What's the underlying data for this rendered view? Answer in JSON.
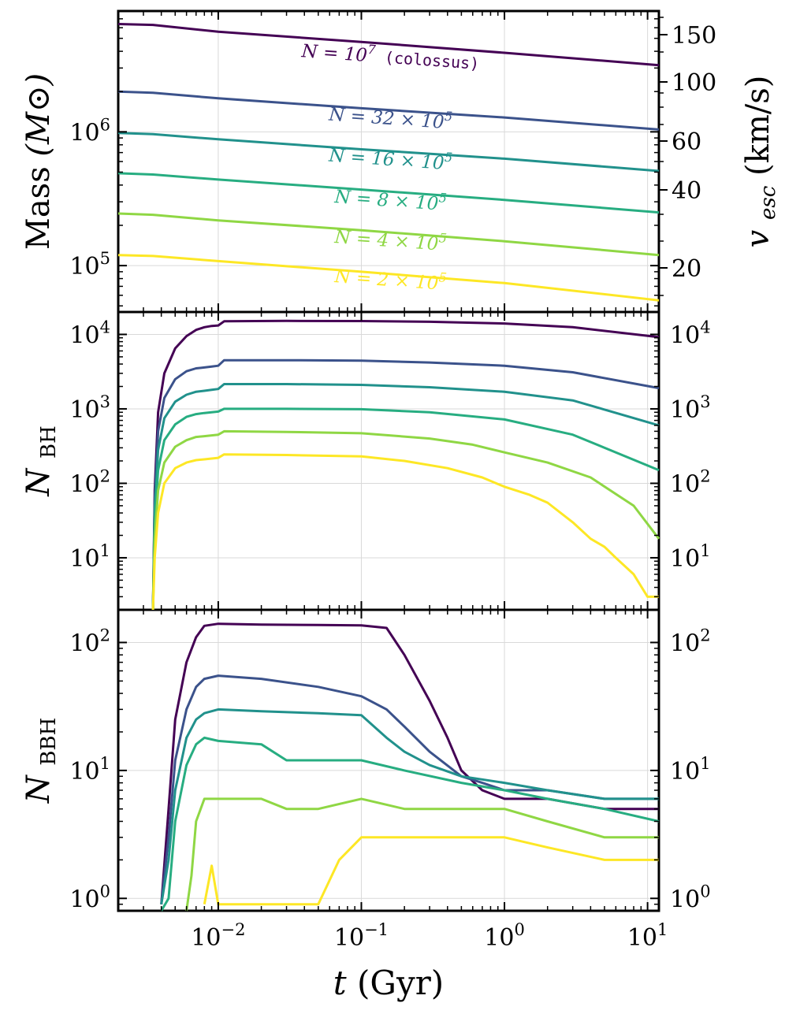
{
  "chart_data": {
    "type": "line",
    "shared_x": {
      "label_var": "t",
      "label_unit": "(Gyr)",
      "scale": "log",
      "xlim": [
        0.002,
        12
      ],
      "ticks": [
        {
          "value": 0.01,
          "base": "10",
          "exp": "−2"
        },
        {
          "value": 0.1,
          "base": "10",
          "exp": "−1"
        },
        {
          "value": 1,
          "base": "10",
          "exp": "0"
        },
        {
          "value": 10,
          "base": "10",
          "exp": "1"
        }
      ]
    },
    "colors": {
      "N1e7": "#440154",
      "N32e5": "#3b528b",
      "N16e5": "#21918c",
      "N8e5": "#27ad81",
      "N4e5": "#8fd744",
      "N2e5": "#fde725"
    },
    "panels": [
      {
        "id": "mass",
        "title": "",
        "ylabel_main": "Mass",
        "ylabel_unit": "(M⊙)",
        "yscale": "log",
        "ylim": [
          45000,
          8000000
        ],
        "yticks": [
          {
            "value": 100000,
            "base": "10",
            "exp": "5"
          },
          {
            "value": 1000000,
            "base": "10",
            "exp": "6"
          }
        ],
        "right_axis": {
          "label": "v_esc (km/s)",
          "label_main": "v",
          "label_sub": "esc",
          "label_unit": "(km/s)",
          "ticks": [
            "150",
            "100",
            "60",
            "40",
            "20"
          ]
        },
        "series": [
          {
            "name": "N = 10^7 (colossus)",
            "color_key": "N1e7",
            "label_text": "N = 10",
            "label_exp": "7",
            "label_suffix": "(colossus)",
            "x": [
              0.002,
              0.0035,
              0.01,
              0.1,
              1,
              12
            ],
            "y": [
              6400000,
              6300000,
              5600000,
              4700000,
              3900000,
              3150000
            ]
          },
          {
            "name": "N = 32 × 10^5",
            "color_key": "N32e5",
            "label_text": "N = 32 × 10",
            "label_exp": "5",
            "x": [
              0.002,
              0.0035,
              0.01,
              0.1,
              1,
              12
            ],
            "y": [
              2000000,
              1960000,
              1780000,
              1500000,
              1280000,
              1040000
            ]
          },
          {
            "name": "N = 16 × 10^5",
            "color_key": "N16e5",
            "label_text": "N = 16 × 10",
            "label_exp": "5",
            "x": [
              0.002,
              0.0035,
              0.01,
              0.1,
              1,
              12
            ],
            "y": [
              980000,
              960000,
              880000,
              740000,
              630000,
              510000
            ]
          },
          {
            "name": "N = 8 × 10^5",
            "color_key": "N8e5",
            "label_text": "N = 8 × 10",
            "label_exp": "5",
            "x": [
              0.002,
              0.0035,
              0.01,
              0.1,
              1,
              12
            ],
            "y": [
              490000,
              480000,
              440000,
              370000,
              310000,
              250000
            ]
          },
          {
            "name": "N = 4 × 10^5",
            "color_key": "N4e5",
            "label_text": "N = 4 × 10",
            "label_exp": "5",
            "x": [
              0.002,
              0.0035,
              0.01,
              0.1,
              1,
              12
            ],
            "y": [
              245000,
              240000,
              218000,
              184000,
              152000,
              120000
            ]
          },
          {
            "name": "N = 2 × 10^5",
            "color_key": "N2e5",
            "label_text": "N = 2 × 10",
            "label_exp": "5",
            "x": [
              0.002,
              0.0035,
              0.01,
              0.1,
              1,
              12
            ],
            "y": [
              120000,
              118000,
              108000,
              90000,
              74000,
              55000
            ]
          }
        ]
      },
      {
        "id": "nbh",
        "ylabel_main": "N",
        "ylabel_sub": "BH",
        "yscale": "log",
        "ylim": [
          2,
          20000
        ],
        "yticks": [
          {
            "value": 10,
            "base": "10",
            "exp": "1"
          },
          {
            "value": 100,
            "base": "10",
            "exp": "2"
          },
          {
            "value": 1000,
            "base": "10",
            "exp": "3"
          },
          {
            "value": 10000,
            "base": "10",
            "exp": "4"
          }
        ],
        "series": [
          {
            "color_key": "N1e7",
            "x": [
              0.0035,
              0.0036,
              0.0038,
              0.0042,
              0.005,
              0.006,
              0.007,
              0.008,
              0.009,
              0.01,
              0.011,
              0.03,
              0.1,
              0.3,
              1,
              3,
              12
            ],
            "y": [
              2,
              80,
              900,
              3000,
              6500,
              9500,
              11500,
              12500,
              13000,
              13200,
              15000,
              15200,
              15100,
              14800,
              14000,
              12500,
              9200
            ]
          },
          {
            "color_key": "N32e5",
            "x": [
              0.0035,
              0.0036,
              0.0038,
              0.0042,
              0.005,
              0.006,
              0.007,
              0.008,
              0.009,
              0.01,
              0.011,
              0.03,
              0.1,
              0.3,
              1,
              3,
              12
            ],
            "y": [
              2,
              60,
              500,
              1400,
              2500,
              3200,
              3500,
              3600,
              3700,
              3800,
              4500,
              4500,
              4450,
              4200,
              3800,
              3100,
              1900
            ]
          },
          {
            "color_key": "N16e5",
            "x": [
              0.0035,
              0.0036,
              0.0038,
              0.0042,
              0.005,
              0.006,
              0.007,
              0.008,
              0.009,
              0.01,
              0.011,
              0.03,
              0.1,
              0.3,
              1,
              3,
              12
            ],
            "y": [
              2,
              45,
              280,
              750,
              1250,
              1550,
              1700,
              1750,
              1800,
              1850,
              2150,
              2150,
              2100,
              1950,
              1700,
              1300,
              600
            ]
          },
          {
            "color_key": "N8e5",
            "x": [
              0.0035,
              0.0036,
              0.0038,
              0.0042,
              0.005,
              0.006,
              0.007,
              0.008,
              0.009,
              0.01,
              0.011,
              0.03,
              0.1,
              0.3,
              1,
              3,
              12
            ],
            "y": [
              2,
              30,
              150,
              380,
              620,
              780,
              850,
              880,
              900,
              920,
              1000,
              1000,
              990,
              900,
              720,
              450,
              150
            ]
          },
          {
            "color_key": "N4e5",
            "x": [
              0.0035,
              0.0036,
              0.0038,
              0.0042,
              0.005,
              0.006,
              0.007,
              0.008,
              0.009,
              0.01,
              0.011,
              0.03,
              0.1,
              0.3,
              0.6,
              1,
              2,
              4,
              8,
              12
            ],
            "y": [
              2,
              18,
              80,
              190,
              310,
              380,
              420,
              430,
              440,
              450,
              500,
              490,
              470,
              400,
              330,
              260,
              190,
              120,
              50,
              18
            ]
          },
          {
            "color_key": "N2e5",
            "x": [
              0.0035,
              0.0036,
              0.0038,
              0.0042,
              0.005,
              0.006,
              0.007,
              0.008,
              0.009,
              0.01,
              0.011,
              0.03,
              0.1,
              0.2,
              0.4,
              0.7,
              1,
              1.5,
              2,
              3,
              4,
              5,
              6,
              8,
              10,
              12
            ],
            "y": [
              2,
              10,
              40,
              100,
              160,
              190,
              205,
              210,
              215,
              220,
              245,
              240,
              230,
              200,
              160,
              120,
              90,
              70,
              55,
              30,
              18,
              14,
              10,
              6,
              3,
              3
            ]
          }
        ]
      },
      {
        "id": "nbbh",
        "ylabel_main": "N",
        "ylabel_sub": "BBH",
        "yscale": "log",
        "ylim": [
          0.8,
          180
        ],
        "yticks": [
          {
            "value": 1,
            "base": "10",
            "exp": "0"
          },
          {
            "value": 10,
            "base": "10",
            "exp": "1"
          },
          {
            "value": 100,
            "base": "10",
            "exp": "2"
          }
        ],
        "series": [
          {
            "color_key": "N1e7",
            "x": [
              0.004,
              0.0045,
              0.005,
              0.006,
              0.007,
              0.008,
              0.01,
              0.02,
              0.05,
              0.1,
              0.15,
              0.2,
              0.3,
              0.4,
              0.5,
              0.7,
              1,
              2,
              5,
              12
            ],
            "y": [
              0.9,
              5,
              25,
              70,
              110,
              135,
              140,
              138,
              137,
              136,
              130,
              80,
              35,
              18,
              10,
              7,
              6,
              6,
              5,
              5
            ]
          },
          {
            "color_key": "N32e5",
            "x": [
              0.004,
              0.0045,
              0.005,
              0.006,
              0.007,
              0.008,
              0.01,
              0.02,
              0.05,
              0.1,
              0.15,
              0.2,
              0.3,
              0.5,
              0.7,
              1,
              2,
              5,
              12
            ],
            "y": [
              0.9,
              3,
              12,
              30,
              45,
              52,
              55,
              52,
              45,
              38,
              30,
              22,
              14,
              9,
              8,
              7,
              7,
              6,
              6
            ]
          },
          {
            "color_key": "N16e5",
            "x": [
              0.004,
              0.0045,
              0.005,
              0.006,
              0.007,
              0.008,
              0.01,
              0.02,
              0.05,
              0.1,
              0.15,
              0.2,
              0.3,
              0.5,
              1,
              2,
              5,
              12
            ],
            "y": [
              0.9,
              2,
              7,
              18,
              25,
              28,
              30,
              29,
              28,
              27,
              18,
              14,
              11,
              9,
              8,
              7,
              6,
              6
            ]
          },
          {
            "color_key": "N8e5",
            "x": [
              0.004,
              0.0045,
              0.005,
              0.006,
              0.007,
              0.008,
              0.01,
              0.02,
              0.03,
              0.05,
              0.1,
              0.2,
              0.5,
              1,
              2,
              5,
              12
            ],
            "y": [
              0.8,
              1,
              4,
              11,
              16,
              18,
              17,
              16,
              12,
              12,
              12,
              10,
              8,
              7,
              6,
              5,
              4
            ]
          },
          {
            "color_key": "N4e5",
            "x": [
              0.006,
              0.0065,
              0.007,
              0.008,
              0.01,
              0.02,
              0.03,
              0.05,
              0.1,
              0.2,
              0.5,
              1,
              2,
              5,
              12
            ],
            "y": [
              0.8,
              1.5,
              4,
              6,
              6,
              6,
              5,
              5,
              6,
              5,
              5,
              5,
              4,
              3,
              3
            ]
          },
          {
            "color_key": "N2e5",
            "x": [
              0.008,
              0.009,
              0.01,
              0.02,
              0.05,
              0.07,
              0.1,
              0.2,
              0.5,
              1,
              2,
              5,
              12
            ],
            "y": [
              0.9,
              1.8,
              0.9,
              0.9,
              0.9,
              2,
              3,
              3,
              3,
              3,
              2.5,
              2,
              2
            ]
          }
        ]
      }
    ]
  }
}
